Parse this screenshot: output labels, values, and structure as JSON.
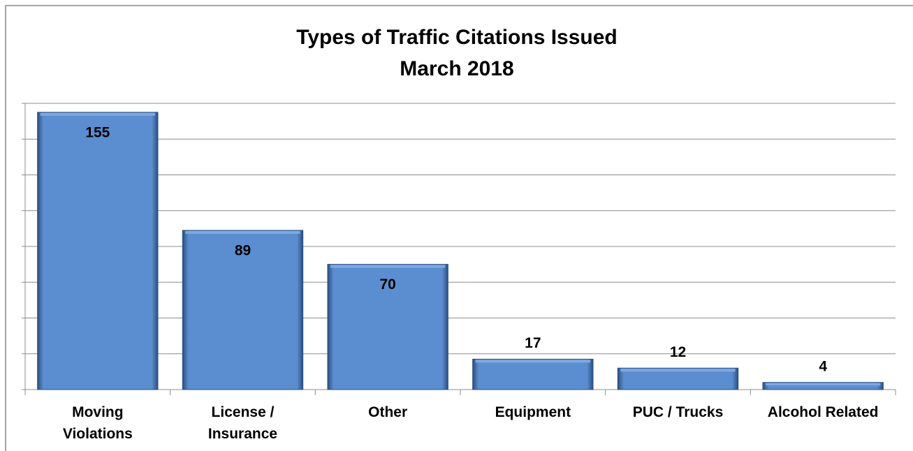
{
  "chart_data": {
    "type": "bar",
    "title": "Types of Traffic Citations Issued",
    "subtitle": "March 2018",
    "categories": [
      "Moving\nViolations",
      "License /\nInsurance",
      "Other",
      "Equipment",
      "PUC / Trucks",
      "Alcohol Related"
    ],
    "values": [
      155,
      89,
      70,
      17,
      12,
      4
    ],
    "color": "#5b8ed0",
    "ylim": [
      0,
      160
    ],
    "yticks": [
      0,
      20,
      40,
      60,
      80,
      100,
      120,
      140,
      160
    ],
    "grid": true
  }
}
